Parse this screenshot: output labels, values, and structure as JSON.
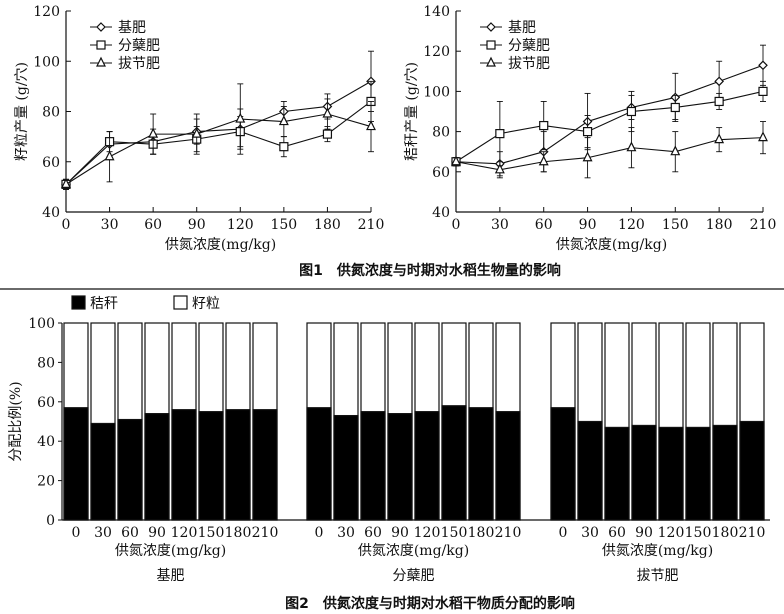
{
  "figure1": {
    "caption": "图1　供氮浓度与时期对水稻生物量的影响",
    "chart_data": [
      {
        "type": "line",
        "ylabel": "籽粒产量 (g/穴)",
        "xlabel": "供氮浓度(mg/kg)",
        "x": [
          0,
          30,
          60,
          90,
          120,
          150,
          180,
          210
        ],
        "ylim": [
          40,
          120
        ],
        "yticks": [
          40,
          60,
          80,
          100,
          120
        ],
        "legend_position": "top-left",
        "series": [
          {
            "name": "基肥",
            "marker": "diamond",
            "values": [
              51,
              67,
              68,
              72,
              73,
              80,
              82,
              92
            ],
            "errors": [
              2,
              5,
              5,
              5,
              8,
              4,
              5,
              12
            ]
          },
          {
            "name": "分蘖肥",
            "marker": "square",
            "values": [
              51,
              68,
              67,
              69,
              72,
              66,
              71,
              84
            ],
            "errors": [
              2,
              4,
              4,
              5,
              6,
              4,
              3,
              8
            ]
          },
          {
            "name": "拔节肥",
            "marker": "triangle",
            "values": [
              51,
              62,
              71,
              71,
              77,
              76,
              79,
              74
            ],
            "errors": [
              2,
              10,
              8,
              8,
              14,
              6,
              6,
              10
            ]
          }
        ]
      },
      {
        "type": "line",
        "ylabel": "秸秆产量 (g/穴)",
        "xlabel": "供氮浓度(mg/kg)",
        "x": [
          0,
          30,
          60,
          90,
          120,
          150,
          180,
          210
        ],
        "ylim": [
          40,
          140
        ],
        "yticks": [
          40,
          60,
          80,
          100,
          120,
          140
        ],
        "legend_position": "top-left",
        "series": [
          {
            "name": "基肥",
            "marker": "diamond",
            "values": [
              65,
              64,
              70,
              85,
              92,
              97,
              105,
              113
            ],
            "errors": [
              2,
              6,
              10,
              14,
              6,
              12,
              10,
              10
            ]
          },
          {
            "name": "分蘖肥",
            "marker": "square",
            "values": [
              65,
              79,
              83,
              80,
              90,
              92,
              95,
              100
            ],
            "errors": [
              2,
              16,
              12,
              8,
              10,
              6,
              4,
              5
            ]
          },
          {
            "name": "拔节肥",
            "marker": "triangle",
            "values": [
              65,
              61,
              65,
              67,
              72,
              70,
              76,
              77
            ],
            "errors": [
              2,
              4,
              5,
              10,
              10,
              10,
              6,
              8
            ]
          }
        ]
      }
    ]
  },
  "figure2": {
    "caption": "图2　供氮浓度与时期对水稻干物质分配的影响",
    "legend": [
      {
        "name": "秸秆",
        "color": "#000000"
      },
      {
        "name": "籽粒",
        "color": "#ffffff"
      }
    ],
    "chart_data": {
      "type": "bar",
      "stacked": true,
      "ylabel": "分配比例(%)",
      "xlabel": "供氮浓度(mg/kg)",
      "ylim": [
        0,
        100
      ],
      "yticks": [
        0,
        20,
        40,
        60,
        80,
        100
      ],
      "categories": [
        "0",
        "30",
        "60",
        "90",
        "120",
        "150",
        "180",
        "210"
      ],
      "groups": [
        {
          "name": "基肥",
          "straw": [
            57,
            49,
            51,
            54,
            56,
            55,
            56,
            56
          ]
        },
        {
          "name": "分蘖肥",
          "straw": [
            57,
            53,
            55,
            54,
            55,
            58,
            57,
            55
          ]
        },
        {
          "name": "拔节肥",
          "straw": [
            57,
            50,
            47,
            48,
            47,
            47,
            48,
            50
          ]
        }
      ]
    }
  }
}
